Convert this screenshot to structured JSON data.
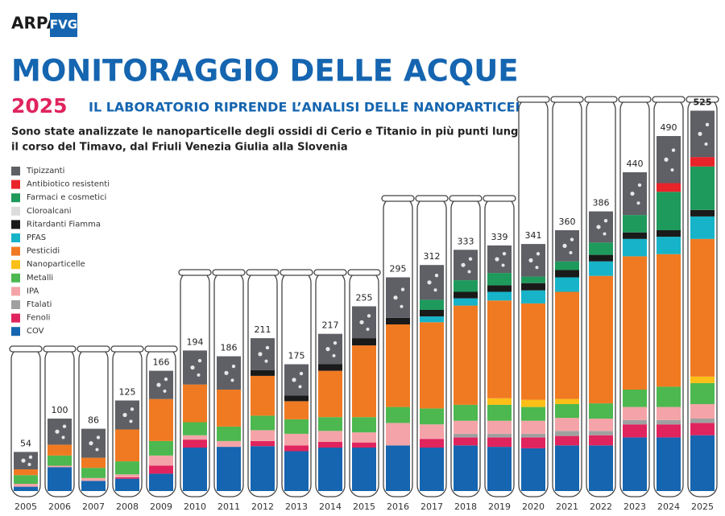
{
  "header": {
    "logo_main": "ARPA",
    "logo_sub": "FVG"
  },
  "chart_data": {
    "type": "stacked-tube",
    "title": "MONITORAGGIO DELLE ACQUE",
    "year_label": "2025",
    "headline": "IL LABORATORIO RIPRENDE L’ANALISI DELLE NANOPARTICELLE",
    "subtitle_lines": [
      "Sono state analizzate le nanoparticelle degli ossidi di Cerio e Titanio in più punti lungo",
      "il corso del Timavo, dal Friuli Venezia Giulia alla Slovenia"
    ],
    "categories": [
      "2005",
      "2006",
      "2007",
      "2008",
      "2009",
      "2010",
      "2011",
      "2012",
      "2013",
      "2014",
      "2015",
      "2016",
      "2017",
      "2018",
      "2019",
      "2020",
      "2021",
      "2022",
      "2023",
      "2024",
      "2025"
    ],
    "totals": [
      54,
      100,
      86,
      125,
      166,
      194,
      186,
      211,
      175,
      217,
      255,
      295,
      312,
      333,
      339,
      341,
      360,
      386,
      440,
      490,
      525
    ],
    "series": [
      {
        "name": "Tipizzanti",
        "color": "#5f6066",
        "values": [
          24,
          36,
          40,
          40,
          39,
          47,
          46,
          44,
          43,
          42,
          44,
          56,
          48,
          42,
          38,
          45,
          43,
          43,
          59,
          65,
          64
        ]
      },
      {
        "name": "Antibiotico resistenti",
        "color": "#e8232a",
        "values": [
          0,
          0,
          0,
          0,
          0,
          0,
          0,
          0,
          0,
          0,
          0,
          0,
          0,
          0,
          0,
          0,
          0,
          0,
          0,
          12,
          13
        ]
      },
      {
        "name": "Farmaci e cosmetici",
        "color": "#1e9a5c",
        "values": [
          0,
          0,
          0,
          0,
          0,
          0,
          0,
          0,
          0,
          0,
          0,
          0,
          14,
          16,
          17,
          9,
          12,
          17,
          24,
          53,
          60
        ]
      },
      {
        "name": "Cloroalcani",
        "color": "#dcdcdc",
        "values": [
          0,
          0,
          0,
          0,
          0,
          0,
          0,
          0,
          0,
          0,
          0,
          0,
          0,
          0,
          0,
          0,
          0,
          0,
          0,
          0,
          0
        ]
      },
      {
        "name": "Ritardanti Fiamma",
        "color": "#1a1a1a",
        "values": [
          0,
          0,
          0,
          0,
          0,
          0,
          0,
          8,
          8,
          9,
          10,
          9,
          9,
          9,
          9,
          10,
          10,
          9,
          9,
          9,
          9
        ]
      },
      {
        "name": "PFAS",
        "color": "#16b3c9",
        "values": [
          0,
          0,
          0,
          0,
          0,
          0,
          0,
          0,
          0,
          0,
          0,
          0,
          8,
          10,
          12,
          18,
          20,
          20,
          24,
          24,
          31
        ]
      },
      {
        "name": "Pesticidi",
        "color": "#f07a22",
        "values": [
          8,
          15,
          14,
          44,
          58,
          52,
          51,
          55,
          25,
          64,
          99,
          114,
          119,
          137,
          135,
          133,
          148,
          176,
          184,
          183,
          190
        ]
      },
      {
        "name": "Nanoparticelle",
        "color": "#fbbf17",
        "values": [
          0,
          0,
          0,
          0,
          0,
          0,
          0,
          0,
          0,
          0,
          0,
          0,
          0,
          0,
          9,
          10,
          7,
          0,
          0,
          0,
          9
        ]
      },
      {
        "name": "Metalli",
        "color": "#4cb84f",
        "values": [
          12,
          14,
          14,
          18,
          20,
          18,
          20,
          20,
          20,
          19,
          21,
          22,
          22,
          22,
          22,
          19,
          19,
          21,
          24,
          28,
          29
        ]
      },
      {
        "name": "IPA",
        "color": "#f4a4a8",
        "values": [
          4,
          2,
          4,
          4,
          14,
          6,
          8,
          15,
          16,
          15,
          14,
          31,
          20,
          18,
          18,
          18,
          18,
          17,
          18,
          18,
          20
        ]
      },
      {
        "name": "Ftalati",
        "color": "#a0a0a0",
        "values": [
          0,
          0,
          0,
          0,
          0,
          0,
          0,
          0,
          0,
          0,
          0,
          0,
          0,
          5,
          5,
          5,
          7,
          6,
          6,
          6,
          6
        ]
      },
      {
        "name": "Fenoli",
        "color": "#e0245e",
        "values": [
          0,
          0,
          0,
          2,
          11,
          11,
          0,
          7,
          8,
          8,
          7,
          0,
          12,
          11,
          13,
          15,
          13,
          14,
          18,
          18,
          17
        ]
      },
      {
        "name": "COV",
        "color": "#1565b0",
        "values": [
          6,
          33,
          14,
          17,
          24,
          60,
          61,
          62,
          55,
          60,
          60,
          63,
          60,
          63,
          61,
          59,
          63,
          63,
          74,
          74,
          77
        ]
      }
    ]
  }
}
